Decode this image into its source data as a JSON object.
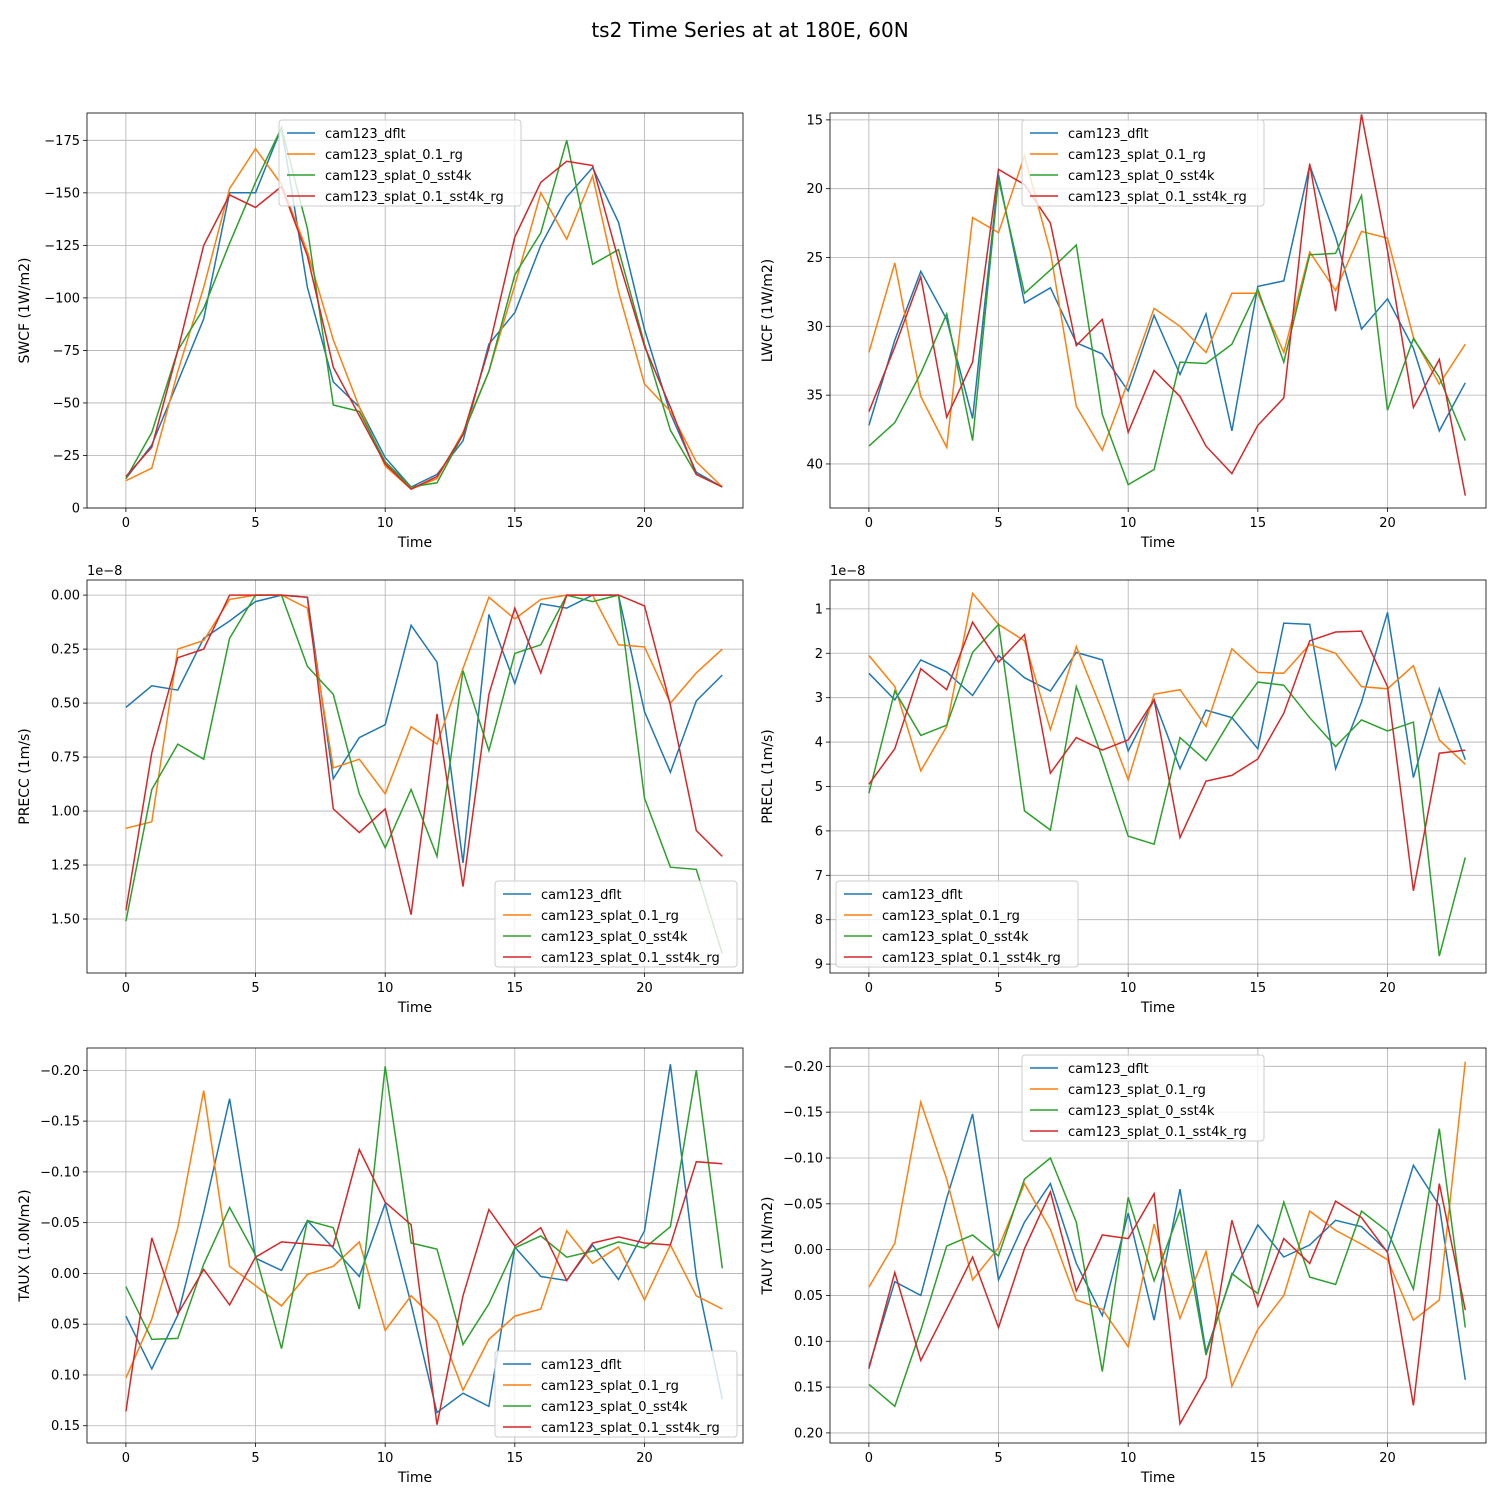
{
  "suptitle": "ts2 Time Series at at 180E, 60N",
  "colors": {
    "cam123_dflt": "#1f77b4",
    "cam123_splat_0.1_rg": "#ff7f0e",
    "cam123_splat_0_sst4k": "#2ca02c",
    "cam123_splat_0.1_sst4k_rg": "#d62728"
  },
  "chart_data": [
    {
      "type": "line",
      "title": "",
      "xlabel": "Time",
      "ylabel": "SWCF (1W/m2)",
      "scale_text": "",
      "xlim": [
        -1.5,
        23.8
      ],
      "ylim": [
        0,
        -188
      ],
      "inverted": true,
      "xticks": [
        0,
        5,
        10,
        15,
        20
      ],
      "yticks": [
        0,
        -25,
        -50,
        -75,
        -100,
        -125,
        -150,
        -175
      ],
      "ytick_labels": [
        "0",
        "−25",
        "−50",
        "−75",
        "−100",
        "−125",
        "−150",
        "−175"
      ],
      "legend_loc": "upper center",
      "x": [
        0,
        1,
        2,
        3,
        4,
        5,
        6,
        7,
        8,
        9,
        10,
        11,
        12,
        13,
        14,
        15,
        16,
        17,
        18,
        19,
        20,
        21,
        22,
        23
      ],
      "series": [
        {
          "name": "cam123_dflt",
          "values": [
            -14,
            -30,
            -60,
            -90,
            -150,
            -150,
            -181,
            -105,
            -60,
            -48,
            -24,
            -10,
            -16,
            -32,
            -78,
            -93,
            -125,
            -148,
            -162,
            -136,
            -85,
            -45,
            -17,
            -10
          ]
        },
        {
          "name": "cam123_splat_0.1_rg",
          "values": [
            -13,
            -19,
            -65,
            -105,
            -152,
            -171,
            -154,
            -122,
            -80,
            -48,
            -20,
            -9,
            -14,
            -36,
            -65,
            -106,
            -150,
            -128,
            -158,
            -103,
            -59,
            -46,
            -22,
            -10
          ]
        },
        {
          "name": "cam123_splat_0_sst4k",
          "values": [
            -14,
            -36,
            -75,
            -95,
            -126,
            -155,
            -181,
            -133,
            -49,
            -46,
            -22,
            -10,
            -12,
            -35,
            -65,
            -111,
            -131,
            -175,
            -116,
            -123,
            -78,
            -37,
            -16,
            -10
          ]
        },
        {
          "name": "cam123_splat_0.1_sst4k_rg",
          "values": [
            -15,
            -29,
            -75,
            -125,
            -149,
            -143,
            -153,
            -120,
            -67,
            -44,
            -21,
            -9,
            -15,
            -35,
            -76,
            -129,
            -155,
            -165,
            -163,
            -118,
            -77,
            -48,
            -16,
            -10
          ]
        }
      ]
    },
    {
      "type": "line",
      "title": "",
      "xlabel": "Time",
      "ylabel": "LWCF (1W/m2)",
      "scale_text": "",
      "xlim": [
        -1.5,
        23.8
      ],
      "ylim": [
        43.2,
        14.5
      ],
      "inverted": true,
      "xticks": [
        0,
        5,
        10,
        15,
        20
      ],
      "yticks": [
        15,
        20,
        25,
        30,
        35,
        40
      ],
      "ytick_labels": [
        "15",
        "20",
        "25",
        "30",
        "35",
        "40"
      ],
      "legend_loc": "upper center",
      "x": [
        0,
        1,
        2,
        3,
        4,
        5,
        6,
        7,
        8,
        9,
        10,
        11,
        12,
        13,
        14,
        15,
        16,
        17,
        18,
        19,
        20,
        21,
        22,
        23
      ],
      "series": [
        {
          "name": "cam123_dflt",
          "values": [
            37.2,
            31,
            26,
            29.5,
            36.7,
            19,
            28.3,
            27.2,
            31.2,
            32,
            34.7,
            29.2,
            33.5,
            29.1,
            37.6,
            27.1,
            26.7,
            18.3,
            23.5,
            30.2,
            28,
            31.6,
            37.6,
            34.1
          ]
        },
        {
          "name": "cam123_splat_0.1_rg",
          "values": [
            31.9,
            25.4,
            35.1,
            38.8,
            22.1,
            23.2,
            17.6,
            24.6,
            35.8,
            39,
            34,
            28.7,
            30,
            31.9,
            27.6,
            27.6,
            31.9,
            24.6,
            27.4,
            23.1,
            23.6,
            30.8,
            34.2,
            31.3
          ]
        },
        {
          "name": "cam123_splat_0_sst4k",
          "values": [
            38.7,
            37,
            33.4,
            29.1,
            38.3,
            19.3,
            27.6,
            25.9,
            24.1,
            36.4,
            41.5,
            40.4,
            32.6,
            32.7,
            31.3,
            27.3,
            32.6,
            24.8,
            24.7,
            20.5,
            36.1,
            30.9,
            33.7,
            38.3
          ]
        },
        {
          "name": "cam123_splat_0.1_sst4k_rg",
          "values": [
            36.2,
            31.5,
            26.4,
            36.6,
            32.6,
            18.6,
            19.7,
            22.5,
            31.4,
            29.5,
            37.7,
            33.2,
            35.1,
            38.7,
            40.7,
            37.2,
            35.2,
            18.2,
            28.9,
            14.6,
            24.5,
            35.9,
            32.4,
            42.3
          ]
        }
      ]
    },
    {
      "type": "line",
      "title": "",
      "xlabel": "Time",
      "ylabel": "PRECC (1m/s)",
      "scale_text": "1e−8",
      "xlim": [
        -1.5,
        23.8
      ],
      "ylim": [
        1.75,
        -0.07
      ],
      "inverted": true,
      "xticks": [
        0,
        5,
        10,
        15,
        20
      ],
      "yticks": [
        0,
        0.25,
        0.5,
        0.75,
        1.0,
        1.25,
        1.5
      ],
      "ytick_labels": [
        "0.00",
        "0.25",
        "0.50",
        "0.75",
        "1.00",
        "1.25",
        "1.50"
      ],
      "legend_loc": "lower right",
      "x": [
        0,
        1,
        2,
        3,
        4,
        5,
        6,
        7,
        8,
        9,
        10,
        11,
        12,
        13,
        14,
        15,
        16,
        17,
        18,
        19,
        20,
        21,
        22,
        23
      ],
      "series": [
        {
          "name": "cam123_dflt",
          "values": [
            0.52,
            0.42,
            0.44,
            0.2,
            0.12,
            0.03,
            0,
            0.01,
            0.85,
            0.66,
            0.6,
            0.14,
            0.31,
            1.24,
            0.09,
            0.41,
            0.04,
            0.06,
            0,
            0,
            0.54,
            0.82,
            0.49,
            0.37
          ]
        },
        {
          "name": "cam123_splat_0.1_rg",
          "values": [
            1.08,
            1.05,
            0.25,
            0.21,
            0.02,
            0,
            0,
            0.06,
            0.8,
            0.76,
            0.92,
            0.61,
            0.69,
            0.34,
            0.01,
            0.11,
            0.02,
            0,
            0,
            0.23,
            0.24,
            0.5,
            0.36,
            0.25
          ]
        },
        {
          "name": "cam123_splat_0_sst4k",
          "values": [
            1.51,
            0.9,
            0.69,
            0.76,
            0.2,
            0,
            0,
            0.33,
            0.46,
            0.92,
            1.17,
            0.9,
            1.21,
            0.35,
            0.72,
            0.27,
            0.23,
            0,
            0.03,
            0,
            0.94,
            1.26,
            1.27,
            1.66
          ]
        },
        {
          "name": "cam123_splat_0.1_sst4k_rg",
          "values": [
            1.46,
            0.73,
            0.29,
            0.25,
            0,
            0,
            0,
            0.01,
            0.99,
            1.1,
            0.99,
            1.48,
            0.55,
            1.35,
            0.46,
            0.06,
            0.36,
            0,
            0,
            0,
            0.05,
            0.51,
            1.09,
            1.21
          ]
        }
      ]
    },
    {
      "type": "line",
      "title": "",
      "xlabel": "Time",
      "ylabel": "PRECL (1m/s)",
      "scale_text": "1e−8",
      "xlim": [
        -1.5,
        23.8
      ],
      "ylim": [
        9.2,
        0.35
      ],
      "inverted": true,
      "xticks": [
        0,
        5,
        10,
        15,
        20
      ],
      "yticks": [
        1,
        2,
        3,
        4,
        5,
        6,
        7,
        8,
        9
      ],
      "ytick_labels": [
        "1",
        "2",
        "3",
        "4",
        "5",
        "6",
        "7",
        "8",
        "9"
      ],
      "legend_loc": "lower left",
      "x": [
        0,
        1,
        2,
        3,
        4,
        5,
        6,
        7,
        8,
        9,
        10,
        11,
        12,
        13,
        14,
        15,
        16,
        17,
        18,
        19,
        20,
        21,
        22,
        23
      ],
      "series": [
        {
          "name": "cam123_dflt",
          "values": [
            2.45,
            3.05,
            2.15,
            2.42,
            2.95,
            2.05,
            2.55,
            2.85,
            1.98,
            2.15,
            4.2,
            3.05,
            4.6,
            3.28,
            3.45,
            4.15,
            1.32,
            1.35,
            4.6,
            3.1,
            1.08,
            4.8,
            2.8,
            4.4
          ]
        },
        {
          "name": "cam123_splat_0.1_rg",
          "values": [
            2.05,
            2.75,
            4.65,
            3.65,
            0.65,
            1.35,
            1.72,
            3.72,
            1.85,
            3.3,
            4.85,
            2.92,
            2.82,
            3.65,
            1.9,
            2.43,
            2.45,
            1.8,
            2.0,
            2.75,
            2.8,
            2.28,
            3.95,
            4.5
          ]
        },
        {
          "name": "cam123_splat_0_sst4k",
          "values": [
            5.15,
            2.85,
            3.85,
            3.62,
            1.98,
            1.35,
            5.55,
            5.98,
            2.75,
            4.35,
            6.12,
            6.3,
            3.9,
            4.42,
            3.45,
            2.65,
            2.72,
            3.45,
            4.1,
            3.5,
            3.75,
            3.55,
            8.82,
            6.6
          ]
        },
        {
          "name": "cam123_splat_0.1_sst4k_rg",
          "values": [
            4.95,
            4.15,
            2.35,
            2.82,
            1.3,
            2.2,
            1.58,
            4.7,
            3.9,
            4.18,
            3.95,
            3.05,
            6.15,
            4.88,
            4.75,
            4.38,
            3.35,
            1.72,
            1.52,
            1.5,
            2.75,
            7.35,
            4.25,
            4.18
          ]
        }
      ]
    },
    {
      "type": "line",
      "title": "",
      "xlabel": "Time",
      "ylabel": "TAUX (1.0N/m2)",
      "scale_text": "",
      "xlim": [
        -1.5,
        23.8
      ],
      "ylim": [
        0.167,
        -0.222
      ],
      "inverted": true,
      "xticks": [
        0,
        5,
        10,
        15,
        20
      ],
      "yticks": [
        0.15,
        0.1,
        0.05,
        0,
        -0.05,
        -0.1,
        -0.15,
        -0.2
      ],
      "ytick_labels": [
        "0.15",
        "0.10",
        "0.05",
        "0.00",
        "−0.05",
        "−0.10",
        "−0.15",
        "−0.20"
      ],
      "legend_loc": "lower right",
      "x": [
        0,
        1,
        2,
        3,
        4,
        5,
        6,
        7,
        8,
        9,
        10,
        11,
        12,
        13,
        14,
        15,
        16,
        17,
        18,
        19,
        20,
        21,
        22,
        23
      ],
      "series": [
        {
          "name": "cam123_dflt",
          "values": [
            0.042,
            0.094,
            0.041,
            -0.06,
            -0.172,
            -0.015,
            -0.003,
            -0.052,
            -0.025,
            0.003,
            -0.069,
            0.03,
            0.137,
            0.118,
            0.131,
            -0.026,
            0.003,
            0.007,
            -0.028,
            0.006,
            -0.042,
            -0.206,
            0.003,
            0.124
          ]
        },
        {
          "name": "cam123_splat_0.1_rg",
          "values": [
            0.103,
            0.045,
            -0.045,
            -0.18,
            -0.007,
            0.012,
            0.032,
            0.001,
            -0.007,
            -0.031,
            0.056,
            0.022,
            0.047,
            0.115,
            0.065,
            0.042,
            0.035,
            -0.042,
            -0.01,
            -0.026,
            0.026,
            -0.028,
            0.022,
            0.035
          ]
        },
        {
          "name": "cam123_splat_0_sst4k",
          "values": [
            0.013,
            0.065,
            0.064,
            -0.009,
            -0.065,
            -0.018,
            0.074,
            -0.052,
            -0.045,
            0.035,
            -0.204,
            -0.03,
            -0.024,
            0.07,
            0.03,
            -0.025,
            -0.037,
            -0.016,
            -0.022,
            -0.031,
            -0.025,
            -0.046,
            -0.2,
            -0.005
          ]
        },
        {
          "name": "cam123_splat_0.1_sst4k_rg",
          "values": [
            0.136,
            -0.035,
            0.04,
            -0.004,
            0.031,
            -0.016,
            -0.031,
            -0.029,
            -0.027,
            -0.122,
            -0.07,
            -0.048,
            0.149,
            0.022,
            -0.063,
            -0.027,
            -0.045,
            0.007,
            -0.03,
            -0.036,
            -0.03,
            -0.028,
            -0.11,
            -0.108
          ]
        }
      ]
    },
    {
      "type": "line",
      "title": "",
      "xlabel": "Time",
      "ylabel": "TAUY (1N/m2)",
      "scale_text": "",
      "xlim": [
        -1.5,
        23.8
      ],
      "ylim": [
        0.211,
        -0.22
      ],
      "inverted": true,
      "xticks": [
        0,
        5,
        10,
        15,
        20
      ],
      "yticks": [
        0.2,
        0.15,
        0.1,
        0.05,
        0,
        -0.05,
        -0.1,
        -0.15,
        -0.2
      ],
      "ytick_labels": [
        "0.20",
        "0.15",
        "0.10",
        "0.05",
        "0.00",
        "−0.05",
        "−0.10",
        "−0.15",
        "−0.20"
      ],
      "legend_loc": "upper center",
      "x": [
        0,
        1,
        2,
        3,
        4,
        5,
        6,
        7,
        8,
        9,
        10,
        11,
        12,
        13,
        14,
        15,
        16,
        17,
        18,
        19,
        20,
        21,
        22,
        23
      ],
      "series": [
        {
          "name": "cam123_dflt",
          "values": [
            0.128,
            0.035,
            0.05,
            -0.056,
            -0.148,
            0.033,
            -0.03,
            -0.072,
            0.015,
            0.072,
            -0.04,
            0.077,
            -0.066,
            0.112,
            0.028,
            -0.027,
            0.008,
            -0.005,
            -0.032,
            -0.025,
            0.002,
            -0.092,
            -0.048,
            0.142
          ]
        },
        {
          "name": "cam123_splat_0.1_rg",
          "values": [
            0.041,
            -0.007,
            -0.161,
            -0.077,
            0.033,
            -0.002,
            -0.072,
            -0.022,
            0.055,
            0.065,
            0.106,
            -0.028,
            0.075,
            0.002,
            0.149,
            0.087,
            0.05,
            -0.042,
            -0.021,
            -0.006,
            0.011,
            0.077,
            0.055,
            -0.205
          ]
        },
        {
          "name": "cam123_splat_0_sst4k",
          "values": [
            0.147,
            0.171,
            0.088,
            -0.004,
            -0.016,
            0.007,
            -0.077,
            -0.1,
            -0.03,
            0.133,
            -0.057,
            0.034,
            -0.043,
            0.115,
            0.026,
            0.048,
            -0.052,
            0.03,
            0.038,
            -0.042,
            -0.02,
            0.043,
            -0.132,
            0.085
          ]
        },
        {
          "name": "cam123_splat_0.1_sst4k_rg",
          "values": [
            0.13,
            0.025,
            0.121,
            0.065,
            0.008,
            0.085,
            -0.001,
            -0.063,
            0.045,
            -0.016,
            -0.012,
            -0.061,
            0.19,
            0.14,
            -0.032,
            0.062,
            -0.012,
            0.015,
            -0.053,
            -0.035,
            0.003,
            0.17,
            -0.072,
            0.066
          ]
        }
      ]
    }
  ]
}
